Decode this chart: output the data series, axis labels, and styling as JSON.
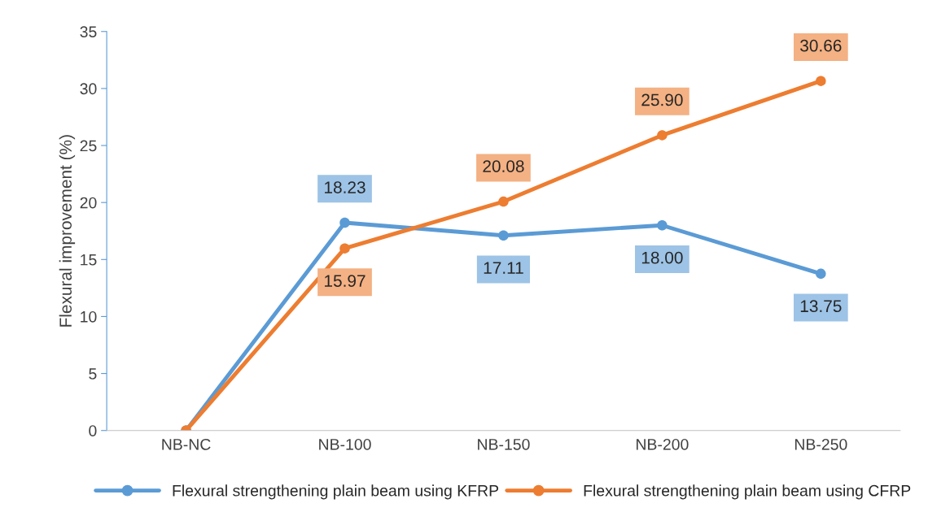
{
  "chart_data": {
    "type": "line",
    "ylabel": "Flexural improvement (%)",
    "categories": [
      "NB-NC",
      "NB-100",
      "NB-150",
      "NB-200",
      "NB-250"
    ],
    "series": [
      {
        "name": "Flexural strengthening plain beam using KFRP",
        "color": "#5b9bd5",
        "values": [
          0,
          18.23,
          17.11,
          18.0,
          13.75
        ],
        "value_labels": [
          null,
          "18.23",
          "17.11",
          "18.00",
          "13.75"
        ]
      },
      {
        "name": "Flexural strengthening plain beam using CFRP",
        "color": "#ed7d31",
        "values": [
          0,
          15.97,
          20.08,
          25.9,
          30.66
        ],
        "value_labels": [
          null,
          "15.97",
          "20.08",
          "25.90",
          "30.66"
        ]
      }
    ],
    "ylim": [
      0,
      35
    ],
    "yticks": [
      0,
      5,
      10,
      15,
      20,
      25,
      30,
      35
    ],
    "grid": false,
    "legend": "bottom",
    "marker": "circle",
    "line_style": "solid"
  }
}
